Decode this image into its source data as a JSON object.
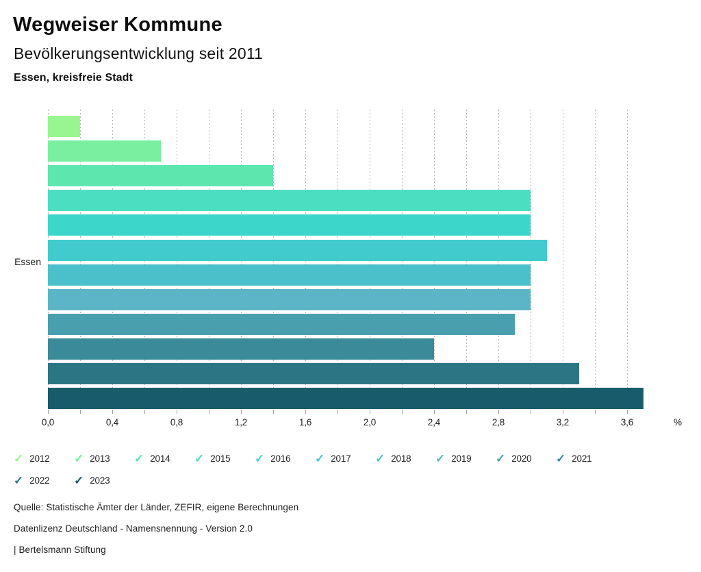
{
  "header": {
    "title": "Wegweiser Kommune",
    "subtitle": "Bevölkerungsentwicklung seit 2011",
    "region": "Essen, kreisfreie Stadt"
  },
  "chart_data": {
    "type": "bar",
    "orientation": "horizontal",
    "title": "Bevölkerungsentwicklung seit 2011",
    "row_label": "Essen",
    "unit": "%",
    "categories": [
      "2012",
      "2013",
      "2014",
      "2015",
      "2016",
      "2017",
      "2018",
      "2019",
      "2020",
      "2021",
      "2022",
      "2023"
    ],
    "values": [
      0.2,
      0.7,
      1.4,
      3.0,
      3.0,
      3.1,
      3.0,
      3.0,
      2.9,
      2.4,
      3.3,
      3.7
    ],
    "colors": [
      "#98F58F",
      "#7BEFA0",
      "#5EE6AF",
      "#4BDEC1",
      "#3DD6CB",
      "#41CBCD",
      "#4BC0CA",
      "#5BB5C6",
      "#4A9FAF",
      "#3B8A99",
      "#2B7584",
      "#185C6B"
    ],
    "xlim": [
      0,
      3.9
    ],
    "x_grid_max": 3.6,
    "x_minor_step": 0.2,
    "x_major_step": 0.4,
    "x_major_tick_labels": [
      "0,0",
      "0,4",
      "0,8",
      "1,2",
      "1,6",
      "2,0",
      "2,4",
      "2,8",
      "3,2",
      "3,6"
    ],
    "grid": "dashed-vertical",
    "legend_position": "bottom"
  },
  "footer": {
    "source": "Quelle: Statistische Ämter der Länder, ZEFIR, eigene Berechnungen",
    "license": "Datenlizenz Deutschland - Namensnennung - Version 2.0",
    "brand": "| Bertelsmann Stiftung"
  }
}
